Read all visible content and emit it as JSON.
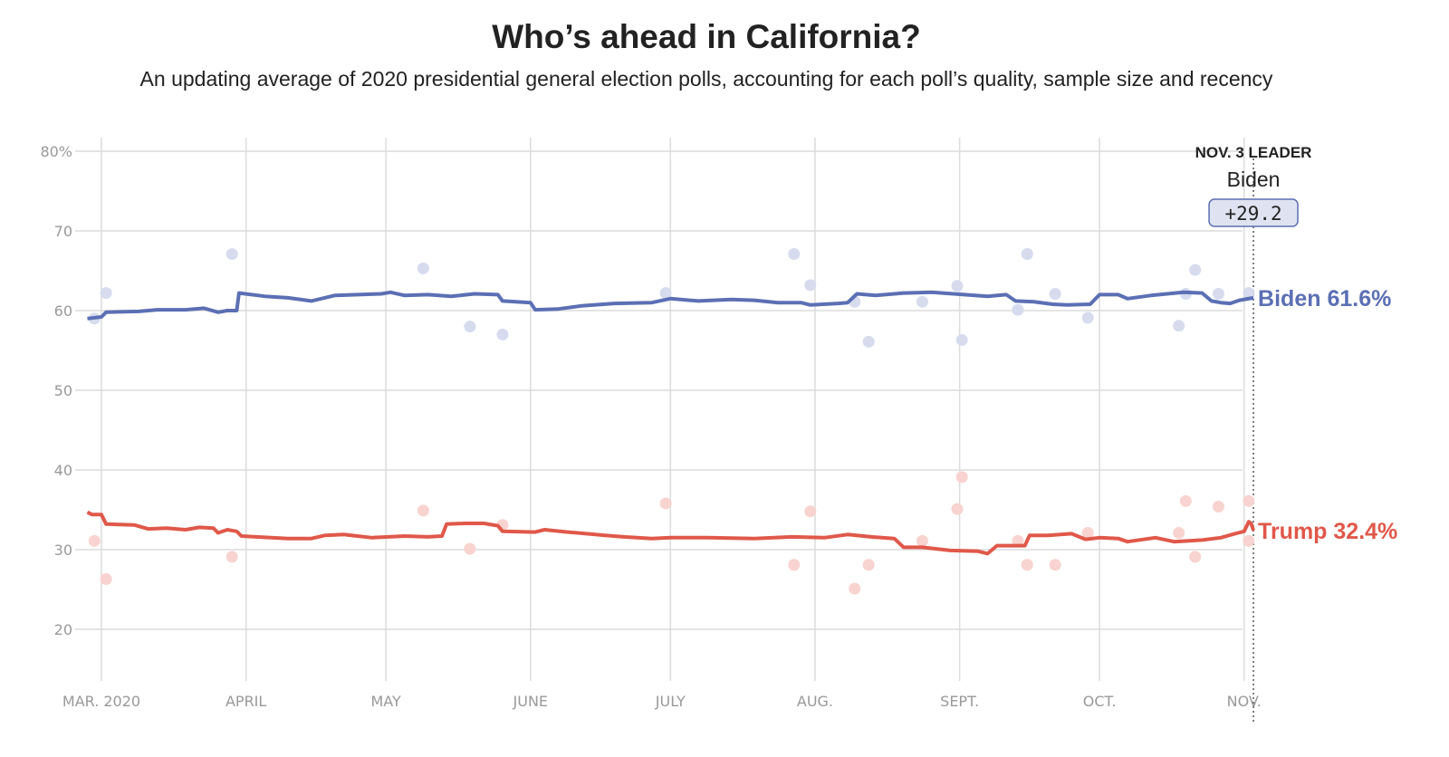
{
  "chart_data": {
    "type": "line",
    "title": "Who’s ahead in California?",
    "subtitle": "An updating average of 2020 presidential general election polls, accounting for each poll’s quality, sample size and recency",
    "x_unit": "days since March 1, 2020",
    "xlim": [
      -3,
      247
    ],
    "ylim": [
      15,
      80
    ],
    "y_ticks": [
      {
        "v": 80,
        "label": "80%"
      },
      {
        "v": 70,
        "label": "70"
      },
      {
        "v": 60,
        "label": "60"
      },
      {
        "v": 50,
        "label": "50"
      },
      {
        "v": 40,
        "label": "40"
      },
      {
        "v": 30,
        "label": "30"
      },
      {
        "v": 20,
        "label": "20"
      }
    ],
    "x_ticks": [
      {
        "d": 0,
        "label": "MAR. 2020"
      },
      {
        "d": 31,
        "label": "APRIL"
      },
      {
        "d": 61,
        "label": "MAY"
      },
      {
        "d": 92,
        "label": "JUNE"
      },
      {
        "d": 122,
        "label": "JULY"
      },
      {
        "d": 153,
        "label": "AUG."
      },
      {
        "d": 184,
        "label": "SEPT."
      },
      {
        "d": 214,
        "label": "OCT."
      },
      {
        "d": 245,
        "label": "NOV."
      }
    ],
    "grid": true,
    "leader": {
      "heading": "NOV. 3 LEADER",
      "name": "Biden",
      "margin": "+29.2",
      "day": 247
    },
    "series": [
      {
        "name": "Biden",
        "end_label": "Biden 61.6%",
        "color": "#5b6fb4",
        "dot_color": "#d6dbee",
        "values": [
          [
            -3,
            59.0
          ],
          [
            0,
            59.2
          ],
          [
            1,
            59.8
          ],
          [
            8,
            59.9
          ],
          [
            12,
            60.1
          ],
          [
            18,
            60.1
          ],
          [
            22,
            60.3
          ],
          [
            25,
            59.8
          ],
          [
            27,
            60.0
          ],
          [
            29,
            60.0
          ],
          [
            29.5,
            62.2
          ],
          [
            35,
            61.8
          ],
          [
            40,
            61.6
          ],
          [
            45,
            61.2
          ],
          [
            50,
            61.9
          ],
          [
            55,
            62.0
          ],
          [
            60,
            62.1
          ],
          [
            62,
            62.3
          ],
          [
            65,
            61.9
          ],
          [
            70,
            62.0
          ],
          [
            75,
            61.8
          ],
          [
            80,
            62.1
          ],
          [
            85,
            62.0
          ],
          [
            86,
            61.2
          ],
          [
            92,
            61.0
          ],
          [
            93,
            60.1
          ],
          [
            98,
            60.2
          ],
          [
            103,
            60.6
          ],
          [
            110,
            60.9
          ],
          [
            118,
            61.0
          ],
          [
            122,
            61.5
          ],
          [
            128,
            61.2
          ],
          [
            135,
            61.4
          ],
          [
            140,
            61.3
          ],
          [
            145,
            61.0
          ],
          [
            150,
            61.0
          ],
          [
            152,
            60.7
          ],
          [
            158,
            60.9
          ],
          [
            160,
            61.0
          ],
          [
            162,
            62.1
          ],
          [
            166,
            61.9
          ],
          [
            172,
            62.2
          ],
          [
            178,
            62.3
          ],
          [
            185,
            62.0
          ],
          [
            190,
            61.8
          ],
          [
            194,
            62.0
          ],
          [
            196,
            61.2
          ],
          [
            200,
            61.1
          ],
          [
            204,
            60.8
          ],
          [
            207,
            60.7
          ],
          [
            212,
            60.8
          ],
          [
            214,
            62.0
          ],
          [
            218,
            62.0
          ],
          [
            220,
            61.5
          ],
          [
            225,
            61.9
          ],
          [
            232,
            62.3
          ],
          [
            236,
            62.2
          ],
          [
            238,
            61.2
          ],
          [
            240,
            61.0
          ],
          [
            242,
            60.9
          ],
          [
            244,
            61.3
          ],
          [
            247,
            61.6
          ]
        ],
        "polls": [
          [
            -1.5,
            59.0
          ],
          [
            1,
            62.2
          ],
          [
            28,
            67.1
          ],
          [
            69,
            65.3
          ],
          [
            79,
            58.0
          ],
          [
            86,
            57.0
          ],
          [
            121,
            62.2
          ],
          [
            148.5,
            67.1
          ],
          [
            152,
            63.2
          ],
          [
            161.5,
            61.1
          ],
          [
            164.5,
            56.1
          ],
          [
            176,
            61.1
          ],
          [
            183.5,
            63.1
          ],
          [
            184.5,
            56.3
          ],
          [
            196.5,
            60.1
          ],
          [
            198.5,
            67.1
          ],
          [
            204.5,
            62.1
          ],
          [
            211.5,
            59.1
          ],
          [
            231,
            58.1
          ],
          [
            232.5,
            62.1
          ],
          [
            234.5,
            65.1
          ],
          [
            239.5,
            62.1
          ],
          [
            246,
            62.2
          ]
        ]
      },
      {
        "name": "Trump",
        "end_label": "Trump 32.4%",
        "color": "#e0584a",
        "dot_color": "#f8d3cf",
        "values": [
          [
            -3,
            34.7
          ],
          [
            -2,
            34.4
          ],
          [
            0,
            34.4
          ],
          [
            1,
            33.2
          ],
          [
            7,
            33.1
          ],
          [
            10,
            32.6
          ],
          [
            14,
            32.7
          ],
          [
            18,
            32.5
          ],
          [
            21,
            32.8
          ],
          [
            24,
            32.7
          ],
          [
            25,
            32.1
          ],
          [
            27,
            32.5
          ],
          [
            29,
            32.3
          ],
          [
            30,
            31.7
          ],
          [
            40,
            31.4
          ],
          [
            45,
            31.4
          ],
          [
            48,
            31.8
          ],
          [
            52,
            31.9
          ],
          [
            58,
            31.5
          ],
          [
            65,
            31.7
          ],
          [
            70,
            31.6
          ],
          [
            73,
            31.7
          ],
          [
            74,
            33.2
          ],
          [
            78,
            33.3
          ],
          [
            82,
            33.3
          ],
          [
            85,
            33.0
          ],
          [
            86,
            32.3
          ],
          [
            93,
            32.2
          ],
          [
            95,
            32.5
          ],
          [
            100,
            32.2
          ],
          [
            108,
            31.8
          ],
          [
            112,
            31.6
          ],
          [
            118,
            31.4
          ],
          [
            122,
            31.5
          ],
          [
            130,
            31.5
          ],
          [
            140,
            31.4
          ],
          [
            148,
            31.6
          ],
          [
            155,
            31.5
          ],
          [
            160,
            31.9
          ],
          [
            165,
            31.6
          ],
          [
            170,
            31.4
          ],
          [
            172,
            30.3
          ],
          [
            176,
            30.3
          ],
          [
            182,
            29.9
          ],
          [
            188,
            29.8
          ],
          [
            190,
            29.5
          ],
          [
            192,
            30.5
          ],
          [
            198,
            30.5
          ],
          [
            199,
            31.8
          ],
          [
            203,
            31.8
          ],
          [
            208,
            32.0
          ],
          [
            211,
            31.3
          ],
          [
            214,
            31.5
          ],
          [
            218,
            31.4
          ],
          [
            220,
            31.0
          ],
          [
            226,
            31.5
          ],
          [
            230,
            31.0
          ],
          [
            236,
            31.2
          ],
          [
            240,
            31.5
          ],
          [
            243,
            32.0
          ],
          [
            245,
            32.3
          ],
          [
            246,
            33.5
          ],
          [
            246.5,
            33.3
          ],
          [
            247,
            32.4
          ]
        ],
        "polls": [
          [
            -1.5,
            31.1
          ],
          [
            1,
            26.3
          ],
          [
            28,
            29.1
          ],
          [
            69,
            34.9
          ],
          [
            79,
            30.1
          ],
          [
            86,
            33.1
          ],
          [
            121,
            35.8
          ],
          [
            148.5,
            28.1
          ],
          [
            152,
            34.8
          ],
          [
            161.5,
            25.1
          ],
          [
            164.5,
            28.1
          ],
          [
            176,
            31.1
          ],
          [
            183.5,
            35.1
          ],
          [
            184.5,
            39.1
          ],
          [
            196.5,
            31.1
          ],
          [
            198.5,
            28.1
          ],
          [
            204.5,
            28.1
          ],
          [
            211.5,
            32.1
          ],
          [
            231,
            32.1
          ],
          [
            232.5,
            36.1
          ],
          [
            234.5,
            29.1
          ],
          [
            239.5,
            35.4
          ],
          [
            246,
            36.1
          ],
          [
            246,
            31.1
          ]
        ]
      }
    ]
  }
}
